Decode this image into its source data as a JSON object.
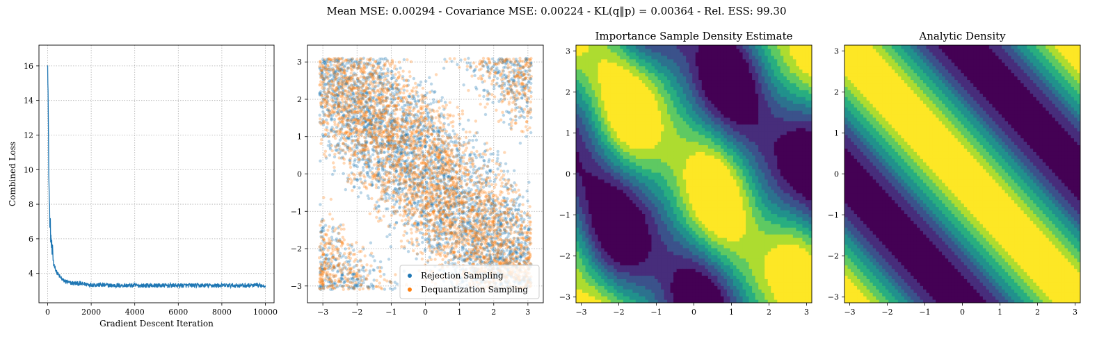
{
  "suptitle": "Mean MSE: 0.00294 - Covariance MSE: 0.00224 - KL(q‖p) = 0.00364 - Rel. ESS: 99.30",
  "colors": {
    "loss": "#1f77b4",
    "rejection": "#1f77b4",
    "dequantization": "#ff7f0e",
    "grid": "#b0b0b0",
    "viridis": [
      "#440154",
      "#472d7b",
      "#3b528b",
      "#2c728e",
      "#21918c",
      "#28ae80",
      "#5ec962",
      "#addc30",
      "#fde725"
    ]
  },
  "chart_data": [
    {
      "type": "line",
      "title": "",
      "xlabel": "Gradient Descent Iteration",
      "ylabel": "Combined Loss",
      "xlim": [
        -400,
        10400
      ],
      "ylim": [
        2.3,
        17.2
      ],
      "xticks": [
        0,
        2000,
        4000,
        6000,
        8000,
        10000
      ],
      "xtick_labels": [
        "0",
        "2000",
        "4000",
        "6000",
        "8000",
        "10000"
      ],
      "yticks": [
        4,
        6,
        8,
        10,
        12,
        14,
        16
      ],
      "ytick_labels": [
        "4",
        "6",
        "8",
        "10",
        "12",
        "14",
        "16"
      ],
      "grid": true,
      "series": [
        {
          "x": [
            0,
            20,
            40,
            60,
            80,
            100,
            150,
            200,
            300,
            400,
            500,
            700,
            1000,
            1500,
            2000,
            3000,
            4000,
            5000,
            6000,
            7000,
            8000,
            9000,
            10000
          ],
          "y": [
            16.6,
            14.5,
            11.0,
            9.2,
            8.0,
            7.2,
            6.0,
            5.2,
            4.5,
            4.1,
            3.9,
            3.6,
            3.45,
            3.4,
            3.35,
            3.3,
            3.3,
            3.3,
            3.3,
            3.3,
            3.3,
            3.3,
            3.3
          ]
        }
      ]
    },
    {
      "type": "scatter",
      "title": "",
      "xlabel": "",
      "ylabel": "",
      "xlim": [
        -3.45,
        3.45
      ],
      "ylim": [
        -3.45,
        3.45
      ],
      "xticks": [
        -3,
        -2,
        -1,
        0,
        1,
        2,
        3
      ],
      "xtick_labels": [
        "−3",
        "−2",
        "−1",
        "0",
        "1",
        "2",
        "3"
      ],
      "yticks": [
        -3,
        -2,
        -1,
        0,
        1,
        2,
        3
      ],
      "ytick_labels": [
        "−3",
        "−2",
        "−1",
        "0",
        "1",
        "2",
        "3"
      ],
      "grid": true,
      "legend_position": "lower-right",
      "series": [
        {
          "name": "Rejection Sampling",
          "n_points": 3500,
          "alpha": 0.3,
          "x_range": [
            -3.14,
            3.14
          ],
          "y_range": [
            -3.14,
            3.14
          ],
          "concentration": "x+y≈0 band (density ∝ cos(x+y)+1)"
        },
        {
          "name": "Dequantization Sampling",
          "n_points": 3500,
          "alpha": 0.3,
          "x_range": [
            -3.14,
            3.14
          ],
          "y_range": [
            -3.14,
            3.14
          ],
          "concentration": "x+y≈0 band (density ∝ cos(x+y)+1)"
        }
      ]
    },
    {
      "type": "heatmap",
      "title": "Importance Sample Density Estimate",
      "xlim": [
        -3.14,
        3.14
      ],
      "ylim": [
        -3.14,
        3.14
      ],
      "xticks": [
        -3,
        -2,
        -1,
        0,
        1,
        2,
        3
      ],
      "xtick_labels": [
        "−3",
        "−2",
        "−1",
        "0",
        "1",
        "2",
        "3"
      ],
      "yticks": [
        -3,
        -2,
        -1,
        0,
        1,
        2,
        3
      ],
      "ytick_labels": [
        "−3",
        "−2",
        "−1",
        "0",
        "1",
        "2",
        "3"
      ],
      "levels": 9,
      "colormap": "viridis",
      "density": "cos(x+y) band, estimated (noisy)"
    },
    {
      "type": "heatmap",
      "title": "Analytic Density",
      "xlim": [
        -3.14,
        3.14
      ],
      "ylim": [
        -3.14,
        3.14
      ],
      "xticks": [
        -3,
        -2,
        -1,
        0,
        1,
        2,
        3
      ],
      "xtick_labels": [
        "−3",
        "−2",
        "−1",
        "0",
        "1",
        "2",
        "3"
      ],
      "yticks": [
        -3,
        -2,
        -1,
        0,
        1,
        2,
        3
      ],
      "ytick_labels": [
        "−3",
        "−2",
        "−1",
        "0",
        "1",
        "2",
        "3"
      ],
      "levels": 9,
      "colormap": "viridis",
      "density": "cos(x+y) band"
    }
  ]
}
